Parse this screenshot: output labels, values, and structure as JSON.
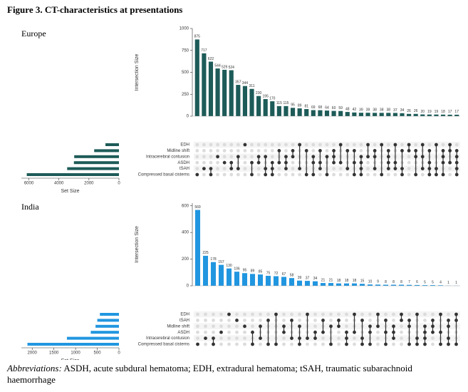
{
  "figure_title": "Figure 3. CT-characteristics at presentations",
  "footnote": {
    "label": "Abbreviations:",
    "text": "ASDH, acute subdural hematoma; EDH, extradural hematoma; tSAH, traumatic subarachnoid haemorrhage"
  },
  "chart_data": [
    {
      "type": "upset",
      "title": "Europe",
      "ylabel": "Intersection Size",
      "color": "#1d5b58",
      "values": [
        875,
        717,
        622,
        544,
        529,
        524,
        357,
        344,
        311,
        230,
        195,
        170,
        115,
        115,
        95,
        89,
        81,
        69,
        68,
        64,
        60,
        59,
        48,
        42,
        39,
        39,
        38,
        38,
        38,
        37,
        34,
        26,
        26,
        20,
        19,
        19,
        18,
        17,
        17
      ],
      "membership": [
        [
          5
        ],
        [
          4
        ],
        [
          4,
          5
        ],
        [
          2
        ],
        [
          3
        ],
        [
          3,
          4
        ],
        [
          2,
          4
        ],
        [
          0
        ],
        [
          3,
          5
        ],
        [
          2,
          3
        ],
        [
          2,
          4,
          5
        ],
        [
          3,
          4,
          5
        ],
        [
          1,
          3
        ],
        [
          2,
          3,
          4
        ],
        [
          1,
          2
        ],
        [
          0,
          4
        ],
        [
          1,
          5
        ],
        [
          2,
          3,
          5
        ],
        [
          1,
          3,
          4
        ],
        [
          2,
          5
        ],
        [
          1,
          2,
          3
        ],
        [
          0,
          3
        ],
        [
          1,
          4
        ],
        [
          1,
          3,
          5
        ],
        [
          2,
          3,
          4,
          5
        ],
        [
          0,
          2
        ],
        [
          1,
          2,
          4
        ],
        [
          0,
          5
        ],
        [
          1,
          2,
          3,
          4
        ],
        [
          0,
          3,
          4
        ],
        [
          1,
          4,
          5
        ],
        [
          0,
          1
        ],
        [
          1,
          2,
          5
        ],
        [
          0,
          2,
          4
        ],
        [
          1,
          3,
          4,
          5
        ],
        [
          0,
          4,
          5
        ],
        [
          1,
          2,
          3,
          5
        ],
        [
          0,
          1,
          3
        ],
        [
          1,
          2,
          3,
          4,
          5
        ]
      ],
      "ylim": [
        0,
        1000
      ],
      "yticks": [
        0,
        250,
        500,
        750,
        1000
      ],
      "sets": [
        "EDH",
        "Midline shift",
        "Intracerebral contusion",
        "ASDH",
        "tSAH",
        "Compressed basal cisterns"
      ],
      "set_sizes": [
        900,
        1650,
        2980,
        3000,
        3450,
        6140
      ],
      "set_xlabel": "Set Size",
      "set_xlim": [
        6500,
        0
      ],
      "set_xticks": [
        6000,
        4000,
        2000,
        0
      ]
    },
    {
      "type": "upset",
      "title": "India",
      "ylabel": "Intersection Size",
      "color": "#2196e0",
      "values": [
        569,
        225,
        178,
        157,
        130,
        106,
        95,
        89,
        85,
        75,
        72,
        67,
        58,
        39,
        37,
        34,
        21,
        21,
        18,
        18,
        18,
        15,
        10,
        9,
        8,
        8,
        8,
        7,
        6,
        5,
        5,
        4,
        1,
        1
      ],
      "membership": [
        [
          5
        ],
        [
          4
        ],
        [
          4,
          5
        ],
        [
          3
        ],
        [
          0
        ],
        [
          1
        ],
        [
          2
        ],
        [
          3,
          5
        ],
        [
          2,
          4
        ],
        [
          1,
          5
        ],
        [
          0,
          5
        ],
        [
          2,
          3
        ],
        [
          1,
          4
        ],
        [
          2,
          4,
          5
        ],
        [
          0,
          4
        ],
        [
          3,
          4
        ],
        [
          1,
          3
        ],
        [
          2,
          5
        ],
        [
          1,
          2
        ],
        [
          3,
          4,
          5
        ],
        [
          0,
          3
        ],
        [
          1,
          4,
          5
        ],
        [
          2,
          3,
          5
        ],
        [
          0,
          2
        ],
        [
          1,
          3,
          5
        ],
        [
          2,
          3,
          4
        ],
        [
          0,
          1
        ],
        [
          1,
          2,
          5
        ],
        [
          0,
          4,
          5
        ],
        [
          2,
          3,
          4,
          5
        ],
        [
          1,
          2,
          3
        ],
        [
          0,
          3,
          5
        ],
        [
          1,
          2,
          4,
          5
        ],
        [
          0,
          1,
          5
        ]
      ],
      "ylim": [
        0,
        620
      ],
      "yticks": [
        0,
        200,
        400,
        600
      ],
      "sets": [
        "EDH",
        "tSAH",
        "Midline shift",
        "ASDH",
        "Intracerebral contusion",
        "Compressed basal cisterns"
      ],
      "set_sizes": [
        440,
        500,
        540,
        650,
        1200,
        2110
      ],
      "set_xlabel": "Set Size",
      "set_xlim": [
        2250,
        0
      ],
      "set_xticks": [
        2000,
        1500,
        1000,
        500,
        0
      ]
    }
  ]
}
